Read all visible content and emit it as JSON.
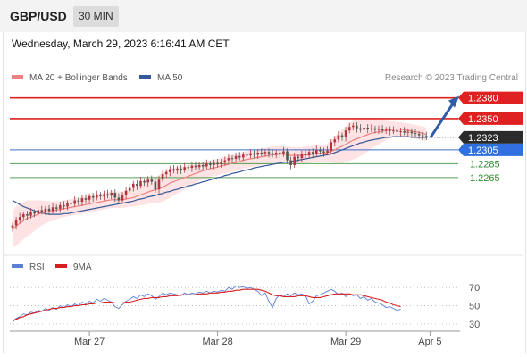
{
  "header": {
    "pair": "GBP/USD",
    "timeframe": "30 MIN",
    "timestamp": "Wednesday, March 29, 2023 6:16:41 AM CET"
  },
  "colors": {
    "ma20": "#f08080",
    "ma50": "#35589a",
    "band_fill": "#fde3e3",
    "candle_up": "#b5343c",
    "candle_down": "#555555",
    "resistance": "#e02121",
    "pivot": "#3b6fd0",
    "support": "#2f8a2f",
    "rsi": "#5b7fd6",
    "rsi9": "#d81f1f",
    "arrow": "#2f5ba8"
  },
  "chart_data": [
    {
      "type": "candlestick",
      "legend": [
        {
          "name": "MA 20 + Bollinger Bands",
          "color": "#f08080"
        },
        {
          "name": "MA 50",
          "color": "#35589a"
        }
      ],
      "legend_placement": "top-left",
      "credit": "Research © 2023 Trading Central",
      "ylim": [
        1.2158,
        1.2395
      ],
      "price_levels": [
        {
          "label": "1.2380",
          "value": 1.238,
          "kind": "resistance"
        },
        {
          "label": "1.2350",
          "value": 1.235,
          "kind": "resistance"
        },
        {
          "label": "1.2323",
          "value": 1.2323,
          "kind": "last"
        },
        {
          "label": "1.2305",
          "value": 1.2305,
          "kind": "pivot"
        },
        {
          "label": "1.2285",
          "value": 1.2285,
          "kind": "support"
        },
        {
          "label": "1.2265",
          "value": 1.2265,
          "kind": "support"
        }
      ],
      "projection": {
        "from": 1.2323,
        "to": 1.238
      },
      "close": [
        1.2196,
        1.2203,
        1.2208,
        1.2212,
        1.221,
        1.2215,
        1.2213,
        1.2218,
        1.2216,
        1.222,
        1.2217,
        1.2222,
        1.222,
        1.2225,
        1.2223,
        1.2228,
        1.2227,
        1.2232,
        1.223,
        1.2235,
        1.2233,
        1.2238,
        1.2236,
        1.224,
        1.2238,
        1.2241,
        1.2239,
        1.2243,
        1.2236,
        1.2232,
        1.224,
        1.2246,
        1.225,
        1.2256,
        1.2253,
        1.226,
        1.2258,
        1.2262,
        1.2259,
        1.2248,
        1.2262,
        1.227,
        1.2273,
        1.2277,
        1.2275,
        1.2278,
        1.2276,
        1.228,
        1.2279,
        1.2282,
        1.228,
        1.2283,
        1.2281,
        1.2285,
        1.2283,
        1.2286,
        1.2284,
        1.2288,
        1.229,
        1.2293,
        1.2292,
        1.2296,
        1.2294,
        1.2298,
        1.2297,
        1.23,
        1.2298,
        1.2301,
        1.23,
        1.2302,
        1.23,
        1.2298,
        1.2301,
        1.2299,
        1.2303,
        1.229,
        1.2283,
        1.2295,
        1.2293,
        1.2299,
        1.2297,
        1.2302,
        1.2299,
        1.2305,
        1.2303,
        1.2301,
        1.2304,
        1.2316,
        1.232,
        1.2326,
        1.2323,
        1.2333,
        1.2338,
        1.234,
        1.2336,
        1.2334,
        1.2337,
        1.2335,
        1.2336,
        1.2334,
        1.2335,
        1.2333,
        1.2334,
        1.2332,
        1.2333,
        1.2331,
        1.2332,
        1.233,
        1.2331,
        1.2329,
        1.2328,
        1.2326,
        1.2325,
        1.2323
      ],
      "ma20": [
        1.219,
        1.2195,
        1.2199,
        1.2203,
        1.2206,
        1.2208,
        1.221,
        1.2212,
        1.2214,
        1.2215,
        1.2216,
        1.2217,
        1.2218,
        1.2219,
        1.222,
        1.2221,
        1.2222,
        1.2223,
        1.2224,
        1.2225,
        1.2226,
        1.2227,
        1.2228,
        1.2229,
        1.223,
        1.2231,
        1.2232,
        1.2233,
        1.2233,
        1.2233,
        1.2233,
        1.2234,
        1.2235,
        1.2236,
        1.2238,
        1.224,
        1.2242,
        1.2244,
        1.2246,
        1.2247,
        1.2249,
        1.2251,
        1.2254,
        1.2257,
        1.2259,
        1.2261,
        1.2263,
        1.2265,
        1.2267,
        1.2269,
        1.2271,
        1.2273,
        1.2275,
        1.2276,
        1.2278,
        1.2279,
        1.228,
        1.2282,
        1.2283,
        1.2284,
        1.2286,
        1.2287,
        1.2288,
        1.229,
        1.2291,
        1.2292,
        1.2293,
        1.2294,
        1.2295,
        1.2296,
        1.2297,
        1.2298,
        1.2298,
        1.2299,
        1.2299,
        1.2298,
        1.2297,
        1.2297,
        1.2297,
        1.2297,
        1.2298,
        1.2298,
        1.2299,
        1.23,
        1.23,
        1.23,
        1.2301,
        1.2303,
        1.2305,
        1.2308,
        1.231,
        1.2313,
        1.2316,
        1.2319,
        1.2321,
        1.2323,
        1.2325,
        1.2327,
        1.2329,
        1.233,
        1.2331,
        1.2332,
        1.2333,
        1.2334,
        1.2335,
        1.2335,
        1.2335,
        1.2334,
        1.2333,
        1.2332,
        1.2331,
        1.233,
        1.2329,
        1.2327
      ],
      "ma50": [
        1.2232,
        1.2229,
        1.2226,
        1.2223,
        1.2221,
        1.2219,
        1.2217,
        1.2215,
        1.2214,
        1.2213,
        1.2212,
        1.2212,
        1.2212,
        1.2212,
        1.2213,
        1.2213,
        1.2214,
        1.2215,
        1.2216,
        1.2217,
        1.2218,
        1.2219,
        1.222,
        1.2221,
        1.2222,
        1.2223,
        1.2224,
        1.2225,
        1.2226,
        1.2227,
        1.2228,
        1.2229,
        1.223,
        1.2231,
        1.2233,
        1.2234,
        1.2235,
        1.2237,
        1.2238,
        1.2239,
        1.2241,
        1.2242,
        1.2244,
        1.2245,
        1.2247,
        1.2248,
        1.225,
        1.2251,
        1.2253,
        1.2254,
        1.2256,
        1.2257,
        1.2259,
        1.226,
        1.2262,
        1.2263,
        1.2265,
        1.2266,
        1.2268,
        1.2269,
        1.2271,
        1.2272,
        1.2273,
        1.2275,
        1.2276,
        1.2277,
        1.2279,
        1.228,
        1.2281,
        1.2282,
        1.2283,
        1.2284,
        1.2285,
        1.2286,
        1.2287,
        1.2287,
        1.2288,
        1.2289,
        1.229,
        1.2291,
        1.2292,
        1.2293,
        1.2294,
        1.2295,
        1.2296,
        1.2297,
        1.2298,
        1.2299,
        1.2301,
        1.2303,
        1.2305,
        1.2307,
        1.2309,
        1.2311,
        1.2313,
        1.2315,
        1.2316,
        1.2318,
        1.2319,
        1.232,
        1.2321,
        1.2322,
        1.2323,
        1.2323,
        1.2324,
        1.2324,
        1.2324,
        1.2324,
        1.2324,
        1.2323,
        1.2323,
        1.2323,
        1.2323,
        1.2323
      ],
      "band_width": [
        0.0027,
        0.0028,
        0.0028,
        0.0027,
        0.0026,
        0.0024,
        0.0022,
        0.002,
        0.0018,
        0.0016,
        0.0015,
        0.0014,
        0.0013,
        0.0012,
        0.0012,
        0.0012,
        0.0012,
        0.0012,
        0.0012,
        0.0012,
        0.0012,
        0.0012,
        0.0012,
        0.0012,
        0.0012,
        0.0012,
        0.0012,
        0.0012,
        0.0012,
        0.0012,
        0.0012,
        0.0012,
        0.0012,
        0.0013,
        0.0014,
        0.0015,
        0.0016,
        0.0017,
        0.0018,
        0.0019,
        0.002,
        0.0021,
        0.0021,
        0.0021,
        0.002,
        0.0019,
        0.0018,
        0.0017,
        0.0016,
        0.0015,
        0.0014,
        0.0013,
        0.0012,
        0.0012,
        0.0012,
        0.0012,
        0.0012,
        0.0012,
        0.0012,
        0.0012,
        0.0012,
        0.0012,
        0.0012,
        0.0012,
        0.0012,
        0.0012,
        0.0012,
        0.0012,
        0.0012,
        0.0012,
        0.0012,
        0.0012,
        0.0012,
        0.0012,
        0.0012,
        0.0012,
        0.0012,
        0.0012,
        0.0012,
        0.0012,
        0.0012,
        0.0012,
        0.0012,
        0.0012,
        0.0012,
        0.0012,
        0.0013,
        0.0016,
        0.0019,
        0.0022,
        0.0024,
        0.0026,
        0.0027,
        0.0028,
        0.0028,
        0.0027,
        0.0026,
        0.0024,
        0.0022,
        0.002,
        0.0018,
        0.0016,
        0.0014,
        0.0012,
        0.0011,
        0.001,
        0.001,
        0.001,
        0.001,
        0.001,
        0.001,
        0.001,
        0.001,
        0.001,
        0.001
      ]
    },
    {
      "type": "line",
      "legend": [
        {
          "name": "RSI",
          "color": "#5b7fd6"
        },
        {
          "name": "9MA",
          "color": "#d81f1f"
        }
      ],
      "ylim": [
        25,
        80
      ],
      "yticks": [
        70,
        50,
        30
      ],
      "xticks": [
        {
          "label": "Mar 27",
          "index": 21
        },
        {
          "label": "Mar 28",
          "index": 56
        },
        {
          "label": "Mar 29",
          "index": 91
        },
        {
          "label": "Apr 5",
          "index": 114
        }
      ],
      "rsi": [
        32,
        36,
        38,
        41,
        40,
        43,
        42,
        45,
        44,
        47,
        45,
        48,
        46,
        50,
        48,
        51,
        49,
        52,
        50,
        54,
        52,
        55,
        53,
        57,
        55,
        58,
        56,
        54,
        49,
        47,
        51,
        55,
        57,
        60,
        58,
        62,
        60,
        63,
        61,
        57,
        60,
        64,
        62,
        64,
        63,
        62,
        61,
        64,
        62,
        64,
        63,
        65,
        64,
        66,
        64,
        66,
        65,
        67,
        66,
        70,
        68,
        72,
        70,
        71,
        69,
        70,
        68,
        66,
        61,
        64,
        55,
        48,
        58,
        62,
        60,
        63,
        61,
        64,
        62,
        63,
        61,
        52,
        55,
        61,
        62,
        64,
        66,
        68,
        66,
        62,
        64,
        60,
        63,
        61,
        62,
        58,
        60,
        56,
        58,
        54,
        53,
        51,
        48,
        49,
        47,
        45,
        46
      ],
      "rsi9": [
        34,
        35,
        37,
        38,
        40,
        41,
        42,
        43,
        44,
        45,
        46,
        47,
        47,
        48,
        48,
        49,
        49,
        50,
        50,
        51,
        51,
        52,
        52,
        53,
        53,
        54,
        54,
        54,
        53,
        53,
        53,
        54,
        54,
        55,
        56,
        57,
        58,
        58,
        59,
        59,
        59,
        60,
        60,
        61,
        61,
        61,
        62,
        62,
        62,
        62,
        62,
        63,
        63,
        63,
        64,
        64,
        64,
        65,
        65,
        66,
        66,
        67,
        67,
        68,
        68,
        68,
        68,
        68,
        67,
        66,
        64,
        62,
        61,
        61,
        60,
        60,
        60,
        60,
        61,
        61,
        61,
        60,
        59,
        59,
        59,
        60,
        61,
        62,
        63,
        63,
        63,
        63,
        63,
        62,
        62,
        62,
        61,
        60,
        59,
        58,
        57,
        56,
        54,
        53,
        51,
        50,
        49
      ]
    }
  ]
}
